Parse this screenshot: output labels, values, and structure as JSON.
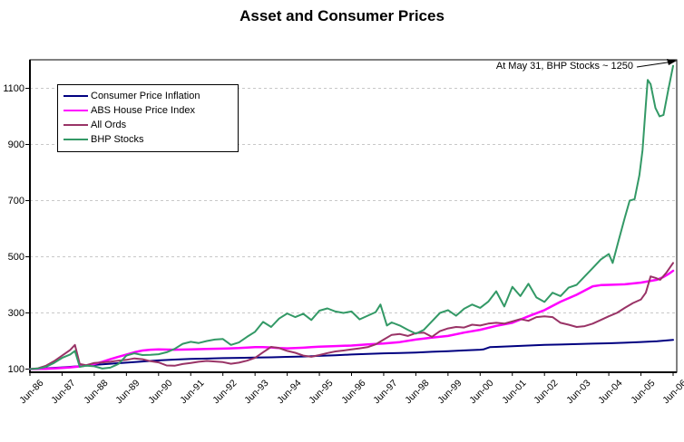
{
  "title": "Asset and Consumer Prices",
  "annotation": {
    "text": "At May 31, BHP Stocks ~ 1250"
  },
  "colors": {
    "cpi": "#000080",
    "house": "#FF00FF",
    "allords": "#993366",
    "bhp": "#339966",
    "grid": "#c8c8c8",
    "axis": "#000000"
  },
  "legend": {
    "items": [
      {
        "label": "Consumer Price Inflation",
        "color": "#000080"
      },
      {
        "label": "ABS House Price Index",
        "color": "#FF00FF"
      },
      {
        "label": "All Ords",
        "color": "#993366"
      },
      {
        "label": "BHP Stocks",
        "color": "#339966"
      }
    ]
  },
  "chart_data": {
    "type": "line",
    "title": "Asset and Consumer Prices",
    "x_unit_note": "x = years after Jun-1986, one x-axis label per year",
    "x_tick_labels": [
      "Jun-86",
      "Jun-87",
      "Jun-88",
      "Jun-89",
      "Jun-90",
      "Jun-91",
      "Jun-92",
      "Jun-93",
      "Jun-94",
      "Jun-95",
      "Jun-96",
      "Jun-97",
      "Jun-98",
      "Jun-99",
      "Jun-00",
      "Jun-01",
      "Jun-02",
      "Jun-03",
      "Jun-04",
      "Jun-05",
      "Jun-06"
    ],
    "y_ticks": [
      100,
      300,
      500,
      700,
      900,
      1100
    ],
    "ylim": [
      100,
      1200
    ],
    "grid": "horizontal dashed gridlines at 300/500/700/900/1100",
    "legend_position": "top-left inside plot",
    "index_base": "Jun-86 = 100",
    "series": [
      {
        "name": "Consumer Price Inflation",
        "color": "#000080",
        "width": 2,
        "points": [
          [
            0,
            100
          ],
          [
            0.5,
            103
          ],
          [
            1,
            106
          ],
          [
            1.5,
            110
          ],
          [
            2,
            115
          ],
          [
            2.5,
            119
          ],
          [
            3,
            123
          ],
          [
            3.5,
            127
          ],
          [
            4,
            131
          ],
          [
            4.5,
            134
          ],
          [
            5,
            136
          ],
          [
            5.5,
            137.5
          ],
          [
            6,
            139
          ],
          [
            6.5,
            140
          ],
          [
            7,
            141
          ],
          [
            7.5,
            142
          ],
          [
            8,
            143.5
          ],
          [
            8.5,
            145
          ],
          [
            9,
            147
          ],
          [
            9.5,
            149.5
          ],
          [
            10,
            152
          ],
          [
            10.5,
            154
          ],
          [
            11,
            156
          ],
          [
            11.5,
            157.5
          ],
          [
            12,
            159
          ],
          [
            12.5,
            161.5
          ],
          [
            13,
            164
          ],
          [
            13.5,
            166.5
          ],
          [
            14,
            169
          ],
          [
            14.1,
            170
          ],
          [
            14.3,
            178
          ],
          [
            14.5,
            179
          ],
          [
            15,
            181.5
          ],
          [
            15.5,
            184
          ],
          [
            16,
            186
          ],
          [
            16.5,
            187.5
          ],
          [
            17,
            189
          ],
          [
            17.5,
            190.5
          ],
          [
            18,
            192
          ],
          [
            18.5,
            194
          ],
          [
            19,
            196.5
          ],
          [
            19.5,
            199.5
          ],
          [
            20,
            204
          ]
        ]
      },
      {
        "name": "ABS House Price Index",
        "color": "#FF00FF",
        "width": 2.5,
        "points": [
          [
            0,
            100
          ],
          [
            0.25,
            100.5
          ],
          [
            0.5,
            101
          ],
          [
            0.75,
            102.5
          ],
          [
            1,
            104
          ],
          [
            1.25,
            106
          ],
          [
            1.5,
            109
          ],
          [
            1.75,
            113
          ],
          [
            2,
            118
          ],
          [
            2.25,
            126
          ],
          [
            2.5,
            135
          ],
          [
            2.75,
            144
          ],
          [
            3,
            152
          ],
          [
            3.25,
            160
          ],
          [
            3.5,
            166
          ],
          [
            3.75,
            169
          ],
          [
            4,
            170
          ],
          [
            4.5,
            169
          ],
          [
            5,
            170
          ],
          [
            5.5,
            171.5
          ],
          [
            6,
            173
          ],
          [
            6.5,
            175
          ],
          [
            7,
            178
          ],
          [
            7.25,
            178
          ],
          [
            7.5,
            177
          ],
          [
            7.75,
            175
          ],
          [
            8,
            174
          ],
          [
            8.25,
            175
          ],
          [
            8.5,
            176
          ],
          [
            8.75,
            178
          ],
          [
            9,
            180
          ],
          [
            9.5,
            182
          ],
          [
            10,
            184
          ],
          [
            10.5,
            188
          ],
          [
            11,
            191
          ],
          [
            11.5,
            196
          ],
          [
            12,
            205
          ],
          [
            12.5,
            212
          ],
          [
            13,
            218
          ],
          [
            13.5,
            230
          ],
          [
            14,
            240
          ],
          [
            14.5,
            254
          ],
          [
            15,
            265
          ],
          [
            15.5,
            288
          ],
          [
            16,
            310
          ],
          [
            16.5,
            340
          ],
          [
            17,
            365
          ],
          [
            17.5,
            395
          ],
          [
            17.75,
            399
          ],
          [
            18,
            400
          ],
          [
            18.5,
            402
          ],
          [
            19,
            408
          ],
          [
            19.5,
            418
          ],
          [
            19.7,
            428
          ],
          [
            19.85,
            438
          ],
          [
            20,
            450
          ]
        ]
      },
      {
        "name": "All Ords",
        "color": "#993366",
        "width": 2,
        "points": [
          [
            0,
            100
          ],
          [
            0.25,
            103
          ],
          [
            0.5,
            112
          ],
          [
            0.75,
            128
          ],
          [
            1,
            148
          ],
          [
            1.25,
            168
          ],
          [
            1.4,
            186
          ],
          [
            1.55,
            118
          ],
          [
            1.75,
            114
          ],
          [
            2,
            122
          ],
          [
            2.25,
            124
          ],
          [
            2.5,
            126
          ],
          [
            2.75,
            130
          ],
          [
            3,
            133
          ],
          [
            3.25,
            138
          ],
          [
            3.5,
            135
          ],
          [
            3.75,
            128
          ],
          [
            4,
            124
          ],
          [
            4.25,
            113
          ],
          [
            4.5,
            112
          ],
          [
            4.75,
            118
          ],
          [
            5,
            122
          ],
          [
            5.25,
            126
          ],
          [
            5.5,
            129
          ],
          [
            5.75,
            127
          ],
          [
            6,
            125
          ],
          [
            6.25,
            119
          ],
          [
            6.5,
            123
          ],
          [
            6.75,
            130
          ],
          [
            7,
            140
          ],
          [
            7.25,
            160
          ],
          [
            7.5,
            179
          ],
          [
            7.75,
            175
          ],
          [
            8,
            165
          ],
          [
            8.25,
            158
          ],
          [
            8.5,
            148
          ],
          [
            8.75,
            144
          ],
          [
            9,
            150
          ],
          [
            9.25,
            157
          ],
          [
            9.5,
            163
          ],
          [
            9.75,
            166
          ],
          [
            10,
            170
          ],
          [
            10.25,
            174
          ],
          [
            10.5,
            178
          ],
          [
            10.75,
            188
          ],
          [
            11,
            205
          ],
          [
            11.25,
            222
          ],
          [
            11.5,
            225
          ],
          [
            11.75,
            218
          ],
          [
            12,
            228
          ],
          [
            12.25,
            230
          ],
          [
            12.5,
            215
          ],
          [
            12.75,
            235
          ],
          [
            13,
            245
          ],
          [
            13.25,
            250
          ],
          [
            13.5,
            248
          ],
          [
            13.75,
            258
          ],
          [
            14,
            255
          ],
          [
            14.25,
            262
          ],
          [
            14.5,
            265
          ],
          [
            14.75,
            262
          ],
          [
            15,
            270
          ],
          [
            15.25,
            278
          ],
          [
            15.5,
            272
          ],
          [
            15.75,
            285
          ],
          [
            16,
            288
          ],
          [
            16.25,
            285
          ],
          [
            16.5,
            265
          ],
          [
            16.75,
            258
          ],
          [
            17,
            250
          ],
          [
            17.25,
            253
          ],
          [
            17.5,
            262
          ],
          [
            17.75,
            275
          ],
          [
            18,
            288
          ],
          [
            18.25,
            300
          ],
          [
            18.5,
            318
          ],
          [
            18.75,
            335
          ],
          [
            19,
            348
          ],
          [
            19.15,
            372
          ],
          [
            19.3,
            430
          ],
          [
            19.45,
            425
          ],
          [
            19.6,
            418
          ],
          [
            19.8,
            445
          ],
          [
            20,
            478
          ]
        ]
      },
      {
        "name": "BHP Stocks",
        "color": "#339966",
        "width": 2,
        "points": [
          [
            0,
            100
          ],
          [
            0.25,
            102
          ],
          [
            0.5,
            108
          ],
          [
            0.75,
            122
          ],
          [
            1,
            140
          ],
          [
            1.25,
            152
          ],
          [
            1.4,
            165
          ],
          [
            1.55,
            108
          ],
          [
            1.75,
            112
          ],
          [
            2,
            110
          ],
          [
            2.25,
            102
          ],
          [
            2.5,
            105
          ],
          [
            2.75,
            118
          ],
          [
            3,
            148
          ],
          [
            3.25,
            156
          ],
          [
            3.5,
            150
          ],
          [
            3.75,
            151
          ],
          [
            4,
            153
          ],
          [
            4.25,
            160
          ],
          [
            4.5,
            172
          ],
          [
            4.75,
            190
          ],
          [
            5,
            197
          ],
          [
            5.25,
            193
          ],
          [
            5.5,
            200
          ],
          [
            5.75,
            205
          ],
          [
            6,
            207
          ],
          [
            6.25,
            186
          ],
          [
            6.5,
            195
          ],
          [
            6.75,
            215
          ],
          [
            7,
            233
          ],
          [
            7.25,
            268
          ],
          [
            7.5,
            250
          ],
          [
            7.75,
            280
          ],
          [
            8,
            298
          ],
          [
            8.25,
            285
          ],
          [
            8.5,
            297
          ],
          [
            8.75,
            275
          ],
          [
            9,
            308
          ],
          [
            9.25,
            316
          ],
          [
            9.5,
            305
          ],
          [
            9.75,
            300
          ],
          [
            10,
            305
          ],
          [
            10.25,
            277
          ],
          [
            10.5,
            290
          ],
          [
            10.75,
            303
          ],
          [
            10.9,
            330
          ],
          [
            11.1,
            255
          ],
          [
            11.25,
            266
          ],
          [
            11.5,
            255
          ],
          [
            11.75,
            240
          ],
          [
            12,
            226
          ],
          [
            12.25,
            240
          ],
          [
            12.5,
            270
          ],
          [
            12.75,
            300
          ],
          [
            13,
            310
          ],
          [
            13.25,
            290
          ],
          [
            13.5,
            315
          ],
          [
            13.75,
            330
          ],
          [
            14,
            318
          ],
          [
            14.25,
            340
          ],
          [
            14.5,
            377
          ],
          [
            14.75,
            323
          ],
          [
            15,
            393
          ],
          [
            15.25,
            360
          ],
          [
            15.5,
            404
          ],
          [
            15.75,
            355
          ],
          [
            16,
            339
          ],
          [
            16.25,
            372
          ],
          [
            16.5,
            360
          ],
          [
            16.75,
            390
          ],
          [
            17,
            400
          ],
          [
            17.25,
            430
          ],
          [
            17.5,
            460
          ],
          [
            17.75,
            490
          ],
          [
            18,
            510
          ],
          [
            18.12,
            478
          ],
          [
            18.3,
            555
          ],
          [
            18.5,
            640
          ],
          [
            18.65,
            700
          ],
          [
            18.8,
            705
          ],
          [
            18.95,
            790
          ],
          [
            19.05,
            880
          ],
          [
            19.15,
            1040
          ],
          [
            19.21,
            1130
          ],
          [
            19.3,
            1115
          ],
          [
            19.45,
            1030
          ],
          [
            19.58,
            1000
          ],
          [
            19.7,
            1005
          ],
          [
            19.85,
            1095
          ],
          [
            20,
            1180
          ]
        ]
      }
    ]
  }
}
